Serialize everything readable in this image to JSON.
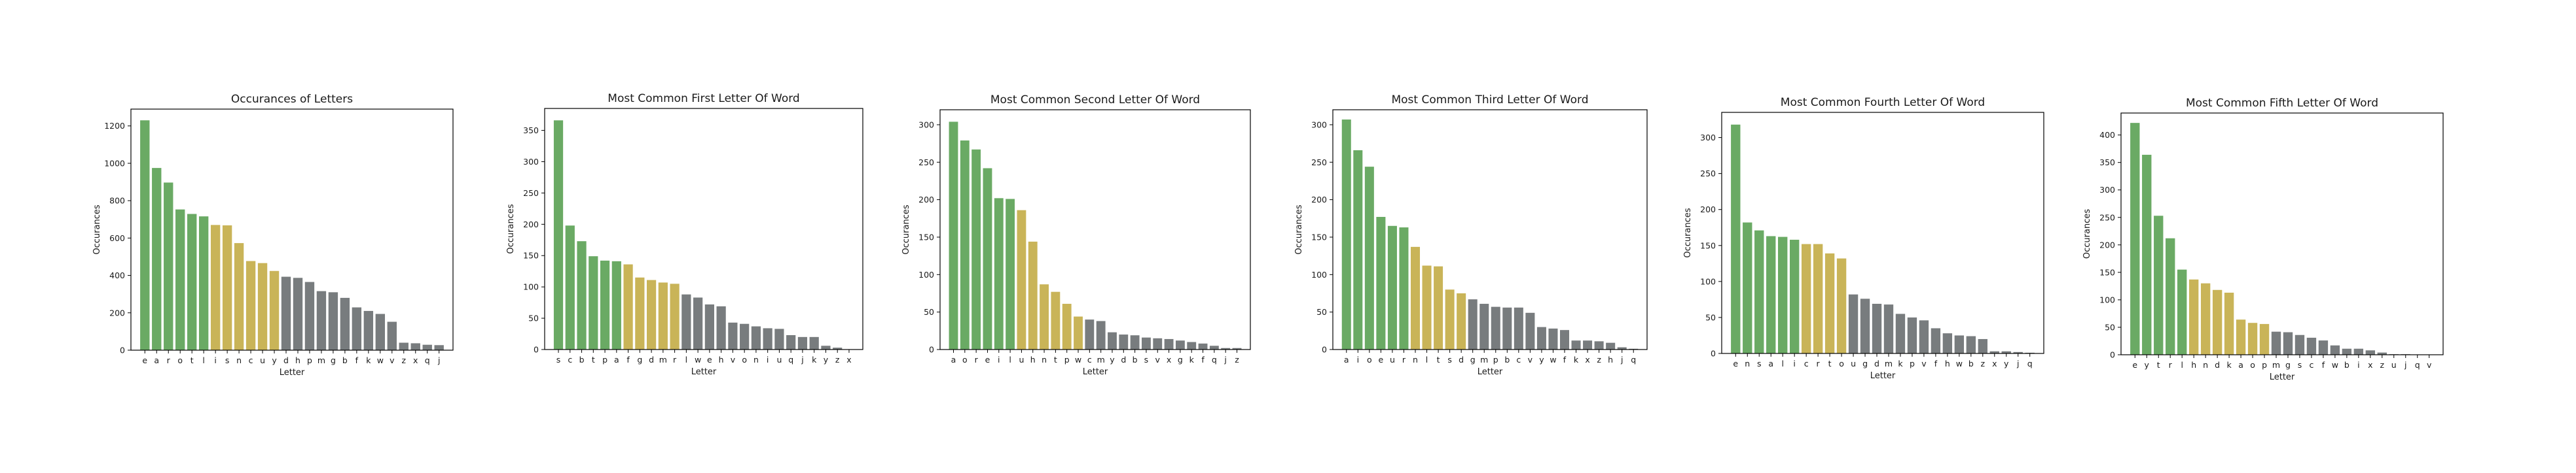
{
  "colors": {
    "green": "#6aaa64",
    "yellow": "#c9b458",
    "gray": "#787c7e"
  },
  "chart_data": [
    {
      "type": "bar",
      "title": "Occurances of Letters",
      "xlabel": "Letter",
      "ylabel": "Occurances",
      "ylim": [
        0,
        1290
      ],
      "yticks": [
        0,
        200,
        400,
        600,
        800,
        1000,
        1200
      ],
      "categories": [
        "e",
        "a",
        "r",
        "o",
        "t",
        "l",
        "i",
        "s",
        "n",
        "c",
        "u",
        "y",
        "d",
        "h",
        "p",
        "m",
        "g",
        "b",
        "f",
        "k",
        "w",
        "v",
        "z",
        "x",
        "q",
        "j"
      ],
      "values": [
        1230,
        975,
        897,
        753,
        729,
        716,
        670,
        668,
        573,
        477,
        466,
        424,
        393,
        387,
        365,
        316,
        310,
        280,
        229,
        210,
        194,
        152,
        40,
        37,
        29,
        27
      ],
      "colors": [
        "green",
        "green",
        "green",
        "green",
        "green",
        "green",
        "yellow",
        "yellow",
        "yellow",
        "yellow",
        "yellow",
        "yellow",
        "gray",
        "gray",
        "gray",
        "gray",
        "gray",
        "gray",
        "gray",
        "gray",
        "gray",
        "gray",
        "gray",
        "gray",
        "gray",
        "gray"
      ]
    },
    {
      "type": "bar",
      "title": "Most Common First Letter Of Word",
      "xlabel": "Letter",
      "ylabel": "Occurances",
      "ylim": [
        0,
        385
      ],
      "yticks": [
        0,
        50,
        100,
        150,
        200,
        250,
        300,
        350
      ],
      "categories": [
        "s",
        "c",
        "b",
        "t",
        "p",
        "a",
        "f",
        "g",
        "d",
        "m",
        "r",
        "l",
        "w",
        "e",
        "h",
        "v",
        "o",
        "n",
        "i",
        "u",
        "q",
        "j",
        "k",
        "y",
        "z",
        "x"
      ],
      "values": [
        366,
        198,
        173,
        149,
        142,
        141,
        136,
        115,
        111,
        107,
        105,
        88,
        83,
        72,
        69,
        43,
        41,
        37,
        34,
        33,
        23,
        20,
        20,
        6,
        3,
        0
      ],
      "colors": [
        "green",
        "green",
        "green",
        "green",
        "green",
        "green",
        "yellow",
        "yellow",
        "yellow",
        "yellow",
        "yellow",
        "gray",
        "gray",
        "gray",
        "gray",
        "gray",
        "gray",
        "gray",
        "gray",
        "gray",
        "gray",
        "gray",
        "gray",
        "gray",
        "gray",
        "gray"
      ]
    },
    {
      "type": "bar",
      "title": "Most Common Second Letter Of Word",
      "xlabel": "Letter",
      "ylabel": "Occurances",
      "ylim": [
        0,
        320
      ],
      "yticks": [
        0,
        50,
        100,
        150,
        200,
        250,
        300
      ],
      "categories": [
        "a",
        "o",
        "r",
        "e",
        "i",
        "l",
        "u",
        "h",
        "n",
        "t",
        "p",
        "w",
        "c",
        "m",
        "y",
        "d",
        "b",
        "s",
        "v",
        "x",
        "g",
        "k",
        "f",
        "q",
        "j",
        "z"
      ],
      "values": [
        304,
        279,
        267,
        242,
        202,
        201,
        186,
        144,
        87,
        77,
        61,
        44,
        40,
        38,
        23,
        20,
        19,
        16,
        15,
        14,
        12,
        10,
        8,
        5,
        2,
        2
      ],
      "colors": [
        "green",
        "green",
        "green",
        "green",
        "green",
        "green",
        "yellow",
        "yellow",
        "yellow",
        "yellow",
        "yellow",
        "yellow",
        "gray",
        "gray",
        "gray",
        "gray",
        "gray",
        "gray",
        "gray",
        "gray",
        "gray",
        "gray",
        "gray",
        "gray",
        "gray",
        "gray"
      ]
    },
    {
      "type": "bar",
      "title": "Most Common Third Letter Of Word",
      "xlabel": "Letter",
      "ylabel": "Occurances",
      "ylim": [
        0,
        320
      ],
      "yticks": [
        0,
        50,
        100,
        150,
        200,
        250,
        300
      ],
      "categories": [
        "a",
        "i",
        "o",
        "e",
        "u",
        "r",
        "n",
        "l",
        "t",
        "s",
        "d",
        "g",
        "m",
        "p",
        "b",
        "c",
        "v",
        "y",
        "w",
        "f",
        "k",
        "x",
        "z",
        "h",
        "j",
        "q"
      ],
      "values": [
        307,
        266,
        244,
        177,
        165,
        163,
        137,
        112,
        111,
        80,
        75,
        67,
        61,
        57,
        56,
        56,
        49,
        30,
        28,
        26,
        12,
        12,
        11,
        9,
        3,
        1
      ],
      "colors": [
        "green",
        "green",
        "green",
        "green",
        "green",
        "green",
        "yellow",
        "yellow",
        "yellow",
        "yellow",
        "yellow",
        "gray",
        "gray",
        "gray",
        "gray",
        "gray",
        "gray",
        "gray",
        "gray",
        "gray",
        "gray",
        "gray",
        "gray",
        "gray",
        "gray",
        "gray"
      ]
    },
    {
      "type": "bar",
      "title": "Most Common Fourth Letter Of Word",
      "xlabel": "Letter",
      "ylabel": "Occurances",
      "ylim": [
        0,
        335
      ],
      "yticks": [
        0,
        50,
        100,
        150,
        200,
        250,
        300
      ],
      "categories": [
        "e",
        "n",
        "s",
        "a",
        "l",
        "i",
        "c",
        "r",
        "t",
        "o",
        "u",
        "g",
        "d",
        "m",
        "k",
        "p",
        "v",
        "f",
        "h",
        "w",
        "b",
        "z",
        "x",
        "y",
        "j",
        "q"
      ],
      "values": [
        318,
        182,
        171,
        163,
        162,
        158,
        152,
        152,
        139,
        132,
        82,
        76,
        69,
        68,
        55,
        50,
        46,
        35,
        28,
        25,
        24,
        20,
        3,
        3,
        2,
        1
      ],
      "colors": [
        "green",
        "green",
        "green",
        "green",
        "green",
        "green",
        "yellow",
        "yellow",
        "yellow",
        "yellow",
        "gray",
        "gray",
        "gray",
        "gray",
        "gray",
        "gray",
        "gray",
        "gray",
        "gray",
        "gray",
        "gray",
        "gray",
        "gray",
        "gray",
        "gray",
        "gray"
      ]
    },
    {
      "type": "bar",
      "title": "Most Common Fifth Letter Of Word",
      "xlabel": "Letter",
      "ylabel": "Occurances",
      "ylim": [
        0,
        440
      ],
      "yticks": [
        0,
        50,
        100,
        150,
        200,
        250,
        300,
        350,
        400
      ],
      "categories": [
        "e",
        "y",
        "t",
        "r",
        "l",
        "h",
        "n",
        "d",
        "k",
        "a",
        "o",
        "p",
        "m",
        "g",
        "s",
        "c",
        "f",
        "w",
        "b",
        "i",
        "x",
        "z",
        "u",
        "j",
        "q",
        "v"
      ],
      "values": [
        422,
        364,
        253,
        212,
        155,
        137,
        130,
        118,
        113,
        64,
        58,
        56,
        42,
        41,
        36,
        31,
        26,
        17,
        11,
        11,
        8,
        4,
        1,
        1,
        0,
        0
      ],
      "colors": [
        "green",
        "green",
        "green",
        "green",
        "green",
        "yellow",
        "yellow",
        "yellow",
        "yellow",
        "yellow",
        "yellow",
        "yellow",
        "gray",
        "gray",
        "gray",
        "gray",
        "gray",
        "gray",
        "gray",
        "gray",
        "gray",
        "gray",
        "gray",
        "gray",
        "gray",
        "gray"
      ]
    }
  ]
}
